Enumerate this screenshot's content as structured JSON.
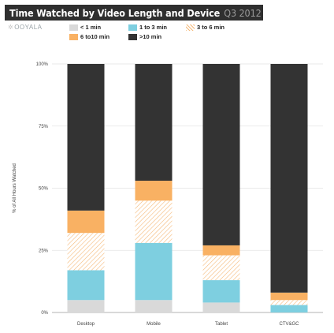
{
  "header": {
    "title": "Time Watched by Video Length and Device",
    "period": "Q3 2012",
    "logo_text": "OOYALA"
  },
  "colors": {
    "lt1": "#d9d9d9",
    "m1to3": "#7ecfe0",
    "m3to6_stripe": "#f5b979",
    "m6to10": "#f9b163",
    "gt10": "#333333",
    "title_bg": "#2f2f2f"
  },
  "chart_data": {
    "type": "bar",
    "stacked": true,
    "title": "Time Watched by Video Length and Device Q3 2012",
    "xlabel": "",
    "ylabel": "% of All Hours Watched",
    "ylim": [
      0,
      100
    ],
    "yticks": [
      "0%",
      "25%",
      "50%",
      "75%",
      "100%"
    ],
    "categories": [
      "Desktop",
      "Mobile",
      "Tablet",
      "CTV&GC"
    ],
    "series": [
      {
        "name": "< 1 min",
        "values": [
          5,
          5,
          4,
          0
        ]
      },
      {
        "name": "1 to 3 min",
        "values": [
          12,
          23,
          9,
          3
        ]
      },
      {
        "name": "3 to 6 min",
        "values": [
          15,
          17,
          10,
          2
        ]
      },
      {
        "name": "6 to10 min",
        "values": [
          9,
          8,
          4,
          3
        ]
      },
      {
        "name": ">10 min",
        "values": [
          59,
          47,
          73,
          92
        ]
      }
    ],
    "legend_position": "top"
  }
}
